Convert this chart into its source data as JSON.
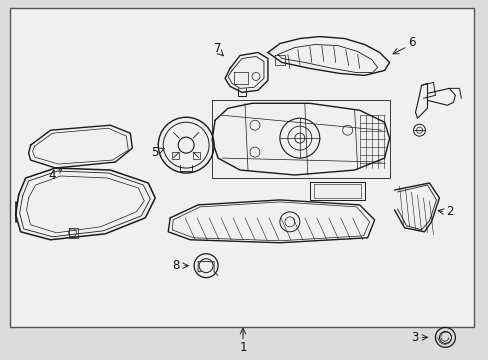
{
  "background_color": "#dcdcdc",
  "box_color": "#f0f0f0",
  "line_color": "#1a1a1a",
  "figure_width": 4.89,
  "figure_height": 3.6,
  "dpi": 100,
  "border_color": "#555555",
  "label_color": "#111111",
  "arrow_color": "#222222"
}
